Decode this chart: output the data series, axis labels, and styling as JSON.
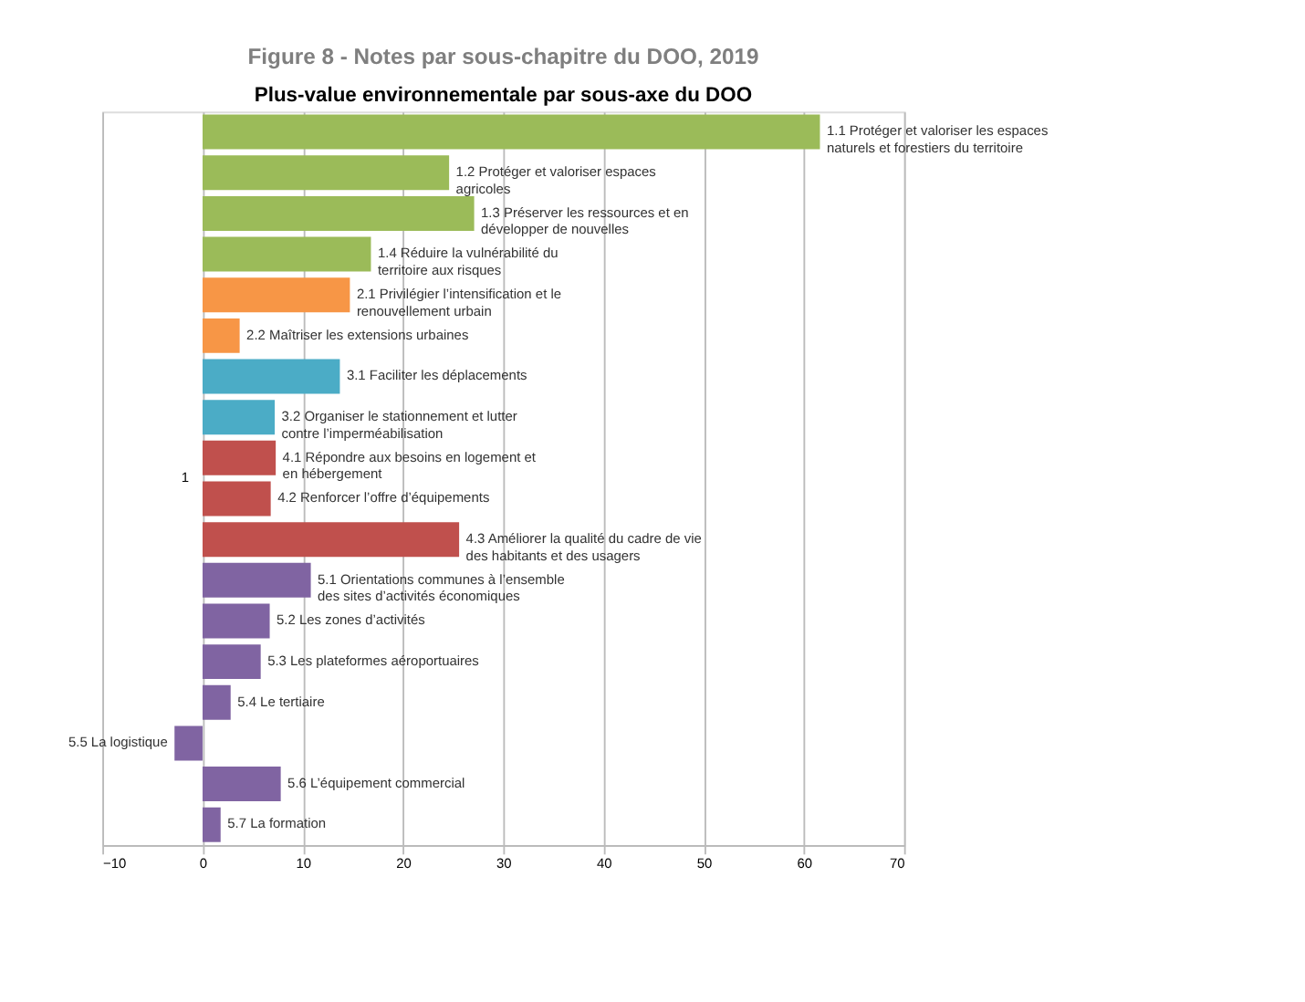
{
  "chart_data": {
    "type": "bar",
    "orientation": "horizontal",
    "title": "Figure 8 - Notes par sous-chapitre du DOO, 2019",
    "subtitle": "Plus-value environnementale par sous-axe du DOO",
    "categories": [
      "1.1 Protéger et valoriser les espaces naturels et forestiers du territoire",
      "1.2 Protéger et valoriser espaces agricoles",
      "1.3 Préserver les ressources et en développer de nouvelles",
      "1.4 Réduire la vulnérabilité du territoire aux risques",
      "2.1 Privilégier l’intensification et le renouvellement urbain",
      "2.2 Maîtriser les extensions urbaines",
      "3.1 Faciliter les déplacements",
      "3.2 Organiser le stationnement et lutter contre l’imperméabilisation",
      "4.1 Répondre aux besoins en logement et en hébergement",
      "4.2 Renforcer l’offre d’équipements",
      "4.3 Améliorer la qualité du cadre de vie des habitants et des usagers",
      "5.1 Orientations communes à l’ensemble des sites d’activités économiques",
      "5.2 Les zones d’activités",
      "5.3 Les plateformes aéroportuaires",
      "5.4 Le tertiaire",
      "5.5 La logistique",
      "5.6 L’équipement commercial",
      "5.7 La formation"
    ],
    "values": [
      61.6,
      24.6,
      27.1,
      16.8,
      14.7,
      3.7,
      13.7,
      7.2,
      7.3,
      6.8,
      25.6,
      10.8,
      6.7,
      5.8,
      2.8,
      -2.8,
      7.8,
      1.8
    ],
    "colors": [
      "#9bbb59",
      "#9bbb59",
      "#9bbb59",
      "#9bbb59",
      "#f79646",
      "#f79646",
      "#4bacc6",
      "#4bacc6",
      "#c0504d",
      "#c0504d",
      "#c0504d",
      "#8064a2",
      "#8064a2",
      "#8064a2",
      "#8064a2",
      "#8064a2",
      "#8064a2",
      "#8064a2"
    ],
    "xlim": [
      -10,
      70
    ],
    "xticks": [
      -10,
      0,
      10,
      20,
      30,
      40,
      50,
      60,
      70
    ],
    "annotations": [
      "1"
    ],
    "grid": "x"
  }
}
